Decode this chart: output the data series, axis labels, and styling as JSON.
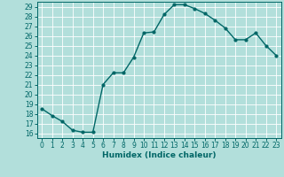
{
  "x": [
    0,
    1,
    2,
    3,
    4,
    5,
    6,
    7,
    8,
    9,
    10,
    11,
    12,
    13,
    14,
    15,
    16,
    17,
    18,
    19,
    20,
    21,
    22,
    23
  ],
  "y": [
    18.5,
    17.8,
    17.2,
    16.3,
    16.1,
    16.1,
    21.0,
    22.2,
    22.2,
    23.8,
    26.3,
    26.4,
    28.2,
    29.2,
    29.2,
    28.8,
    28.3,
    27.6,
    26.8,
    25.6,
    25.6,
    26.3,
    25.0,
    24.0
  ],
  "line_color": "#006666",
  "marker": "o",
  "markersize": 2.0,
  "linewidth": 1.0,
  "xlabel": "Humidex (Indice chaleur)",
  "xlim": [
    -0.5,
    23.5
  ],
  "ylim": [
    15.5,
    29.5
  ],
  "yticks": [
    16,
    17,
    18,
    19,
    20,
    21,
    22,
    23,
    24,
    25,
    26,
    27,
    28,
    29
  ],
  "xticks": [
    0,
    1,
    2,
    3,
    4,
    5,
    6,
    7,
    8,
    9,
    10,
    11,
    12,
    13,
    14,
    15,
    16,
    17,
    18,
    19,
    20,
    21,
    22,
    23
  ],
  "bg_color": "#b2dfdb",
  "grid_color": "#ffffff",
  "label_fontsize": 6.5,
  "tick_fontsize": 5.5
}
